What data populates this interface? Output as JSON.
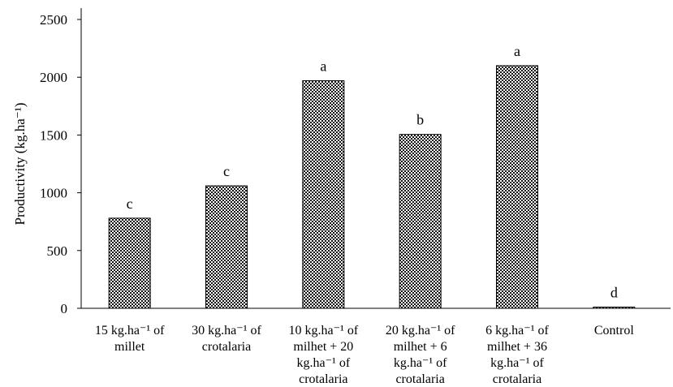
{
  "chart_data": {
    "type": "bar",
    "title": "",
    "xlabel": "",
    "ylabel": "Productivity (kg.ha⁻¹)",
    "ylim": [
      0,
      2500
    ],
    "yticks": [
      0,
      500,
      1000,
      1500,
      2000,
      2500
    ],
    "grid": false,
    "legend": "none",
    "categories": [
      [
        "15 kg.ha⁻¹ of",
        "millet"
      ],
      [
        "30 kg.ha⁻¹ of",
        "crotalaria"
      ],
      [
        "10 kg.ha⁻¹ of",
        "milhet + 20",
        "kg.ha⁻¹ of",
        "crotalaria"
      ],
      [
        "20 kg.ha⁻¹ of",
        "milhet + 6",
        "kg.ha⁻¹ of",
        "crotalaria"
      ],
      [
        "6 kg.ha⁻¹ of",
        "milhet + 36",
        "kg.ha⁻¹ of",
        "crotalaria"
      ],
      [
        "Control"
      ]
    ],
    "values": [
      780,
      1060,
      1970,
      1505,
      2100,
      10
    ],
    "data_labels": [
      "c",
      "c",
      "a",
      "b",
      "a",
      "d"
    ],
    "colors": {
      "bar_fill": "#d9d9d9",
      "bar_pattern_dark": "#111111",
      "bar_pattern_light": "#ffffff",
      "axis": "#000000"
    }
  }
}
